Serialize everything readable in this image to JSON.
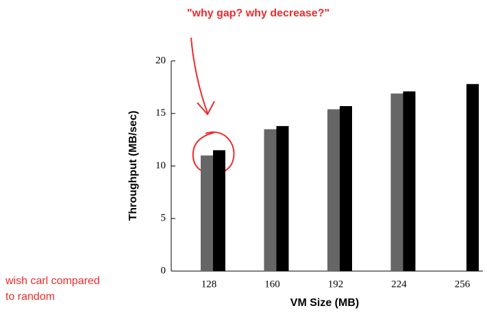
{
  "chart_data": {
    "type": "bar",
    "xlabel": "VM Size (MB)",
    "ylabel": "Throughput (MB/sec)",
    "categories": [
      "128",
      "160",
      "192",
      "224",
      "256"
    ],
    "series": [
      {
        "color": "#666666",
        "values": [
          11.0,
          13.5,
          15.4,
          16.9,
          null
        ]
      },
      {
        "color": "#000000",
        "values": [
          11.5,
          13.8,
          15.7,
          17.1,
          17.8
        ]
      }
    ],
    "ylim": [
      0,
      20
    ],
    "yticks": [
      0,
      5,
      10,
      15,
      20
    ],
    "grid": false,
    "annotations": [
      "\"why gap?  why decrease?\"",
      "wish carl compared",
      "to random"
    ]
  }
}
